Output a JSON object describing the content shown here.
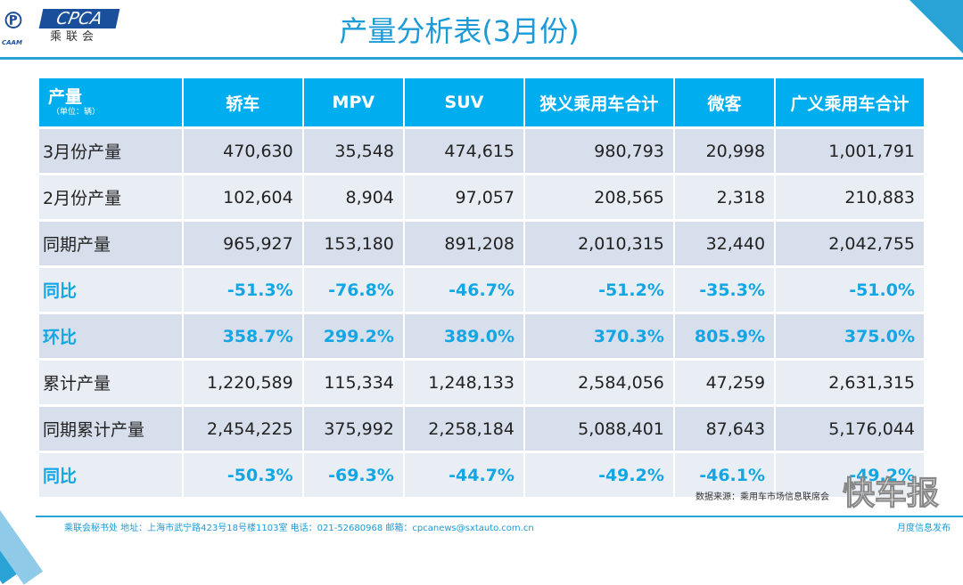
{
  "logo": {
    "text": "CPCA",
    "cn": "乘联会",
    "en": "CAAM"
  },
  "title": "产量分析表(3月份)",
  "table": {
    "corner_label": "产量",
    "corner_unit": "（单位：辆）",
    "headers": [
      "轿车",
      "MPV",
      "SUV",
      "狭义乘用车合计",
      "微客",
      "广义乘用车合计"
    ],
    "rows": [
      {
        "label": "3月份产量",
        "values": [
          "470,630",
          "35,548",
          "474,615",
          "980,793",
          "20,998",
          "1,001,791"
        ]
      },
      {
        "label": "2月份产量",
        "values": [
          "102,604",
          "8,904",
          "97,057",
          "208,565",
          "2,318",
          "210,883"
        ]
      },
      {
        "label": "同期产量",
        "values": [
          "965,927",
          "153,180",
          "891,208",
          "2,010,315",
          "32,440",
          "2,042,755"
        ]
      },
      {
        "label": "同比",
        "values": [
          "-51.3%",
          "-76.8%",
          "-46.7%",
          "-51.2%",
          "-35.3%",
          "-51.0%"
        ]
      },
      {
        "label": "环比",
        "values": [
          "358.7%",
          "299.2%",
          "389.0%",
          "370.3%",
          "805.9%",
          "375.0%"
        ]
      },
      {
        "label": "累计产量",
        "values": [
          "1,220,589",
          "115,334",
          "1,248,133",
          "2,584,056",
          "47,259",
          "2,631,315"
        ]
      },
      {
        "label": "同期累计产量",
        "values": [
          "2,454,225",
          "375,992",
          "2,258,184",
          "5,088,401",
          "87,643",
          "5,176,044"
        ]
      },
      {
        "label": "同比",
        "values": [
          "-50.3%",
          "-69.3%",
          "-44.7%",
          "-49.2%",
          "-46.1%",
          "-49.2%"
        ]
      }
    ]
  },
  "source": "数据来源：乘用车市场信息联席会",
  "watermark": "快车报",
  "footer": {
    "left": "乘联会秘书处   地址：上海市武宁路423号18号楼1103室  电话：021-52680968   邮箱：cpcanews@sxtauto.com.cn",
    "right": "月度信息发布"
  },
  "colors": {
    "header": "#00aeef",
    "accent": "#12a7e4",
    "title": "#1a9ad6"
  }
}
